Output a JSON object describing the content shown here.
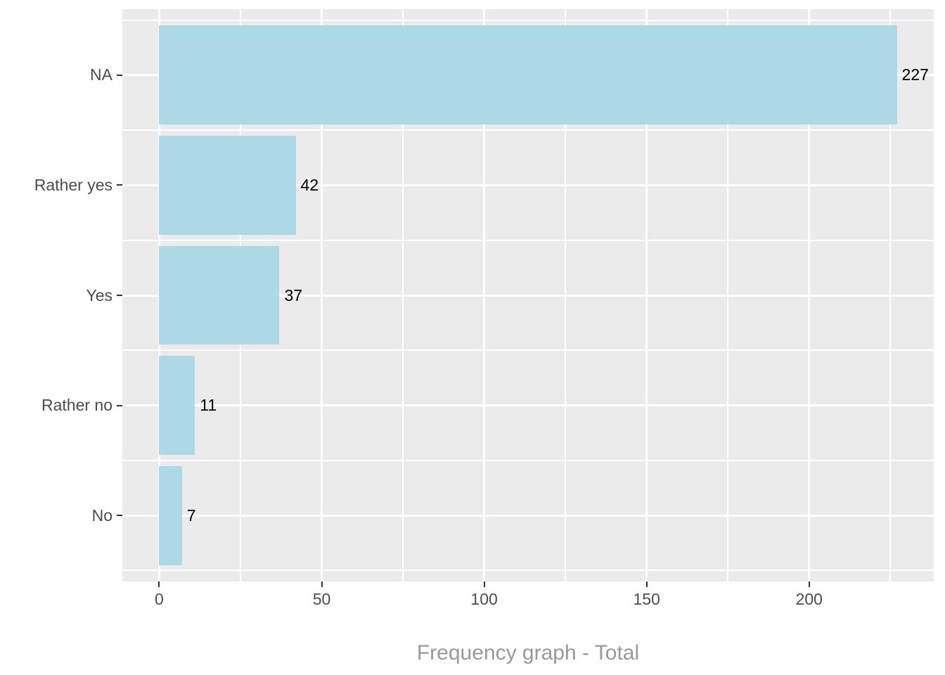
{
  "chart_data": {
    "type": "bar",
    "orientation": "horizontal",
    "title": "",
    "xlabel": "Frequency graph - Total",
    "ylabel": "",
    "categories": [
      "NA",
      "Rather yes",
      "Yes",
      "Rather no",
      "No"
    ],
    "values": [
      227,
      42,
      37,
      11,
      7
    ],
    "bar_labels": [
      "227",
      "42",
      "37",
      "11",
      "7"
    ],
    "x_ticks": [
      0,
      50,
      100,
      150,
      200
    ],
    "x_tick_labels": [
      "0",
      "50",
      "100",
      "150",
      "200"
    ],
    "x_minor_ticks": [
      25,
      75,
      125,
      175,
      225
    ],
    "xlim": [
      -11.35,
      238.35
    ],
    "bar_width_fraction": 0.9,
    "legend": "none",
    "grid": "on",
    "colors": {
      "bar_fill": "#ADD8E6",
      "panel_background": "#EBEBEB",
      "gridline": "#FFFFFF",
      "axis_text": "#4D4D4D",
      "tick_mark": "#333333",
      "bar_label_text": "#000000",
      "title_text": "#999999",
      "page_background": "#FFFFFF"
    }
  }
}
